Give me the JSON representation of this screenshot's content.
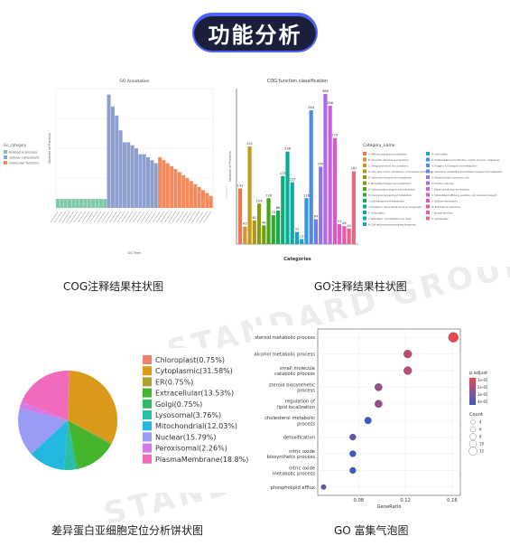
{
  "page_title": "功能分析",
  "watermark_text": "STANDARD GROUP",
  "captions": {
    "cog": "COG注释结果柱状图",
    "go": "GO注释结果柱状图",
    "pie": "差异蛋白亚细胞定位分析饼状图",
    "bubble": "GO 富集气泡图"
  },
  "chart_data": [
    {
      "id": "go_annotation",
      "type": "bar",
      "title": "GO Annotation",
      "xlabel": "GO Term",
      "ylabel": "Number of Proteins",
      "legend_title": "Go_category",
      "legend": [
        "biological process",
        "cellular component",
        "molecular function"
      ],
      "colors": [
        "#7fc8a9",
        "#8e9fcf",
        "#f58a5c"
      ],
      "values": [
        [
          3,
          3,
          3,
          3,
          3,
          3,
          3,
          3,
          3,
          3,
          3,
          3,
          3
        ],
        [
          38,
          34,
          31,
          26,
          22,
          22,
          21,
          20,
          18,
          18,
          17,
          16,
          15
        ],
        [
          17,
          16,
          15,
          14,
          13,
          12,
          11,
          10,
          9,
          8,
          7,
          6,
          5,
          4
        ]
      ],
      "ylim": [
        0,
        40
      ]
    },
    {
      "id": "cog_classification",
      "type": "bar",
      "title": "COG function classification",
      "xlabel": "Categories",
      "ylabel": "Number of Proteins",
      "legend_title": "Category_name",
      "values": [
        143,
        45,
        251,
        61,
        104,
        48,
        118,
        74,
        86,
        175,
        238,
        159,
        31,
        13,
        118,
        344,
        64,
        199,
        386,
        356,
        273,
        51,
        46,
        40,
        187
      ],
      "colors": [
        "#e8784f",
        "#d6923a",
        "#c49a18",
        "#ae9a14",
        "#8a9a10",
        "#6ba30e",
        "#48a41c",
        "#2ea82d",
        "#16ad4c",
        "#0bae73",
        "#07ae93",
        "#08aaaa",
        "#12a6bf",
        "#21a0d2",
        "#2f97e3",
        "#4e89ed",
        "#6f7df0",
        "#8f73ee",
        "#ab6ae9",
        "#c561e0",
        "#d659cf",
        "#e257bb",
        "#e85aa5",
        "#ea5f90",
        "#e9677d"
      ],
      "legend": [
        "A: RNA processing and modification",
        "B: Chromatin structure and dynamics",
        "C: Energy production and conversion",
        "D: Cell cycle control, cell division, chromosome partitioning",
        "E: Amino acid transport and metabolism",
        "F: Nucleotide transport and metabolism",
        "G: Carbohydrate transport and metabolism",
        "H: Coenzyme transport and metabolism",
        "I: Lipid transport and metabolism",
        "J: Translation, ribosomal structure and biogenesis",
        "K: Transcription",
        "L: Replication, recombination and repair",
        "M: Cell wall/membrane/envelope biogenesis",
        "N: Cell motility",
        "O: Posttranslational modification, protein turnover, chaperones",
        "P: Inorganic ion transport and metabolism",
        "Q: Secondary metabolites biosynthesis, transport and catabolism",
        "R: General function prediction only",
        "S: Function unknown",
        "T: Signal transduction mechanisms",
        "U: Intracellular trafficking, secretion, and vesicular transport",
        "V: Defense mechanisms",
        "W: Extracellular structures",
        "Y: Nuclear structure",
        "Z: Cytoskeleton"
      ],
      "ylim": [
        0,
        400
      ]
    },
    {
      "id": "subcellular_pie",
      "type": "pie",
      "labels": [
        "Chloroplast(0.75%)",
        "Cytoplasmic(31.58%)",
        "ER(0.75%)",
        "Extracellular(13.53%)",
        "Golgi(0.75%)",
        "Lysosomal(3.76%)",
        "Mitochondrial(12.03%)",
        "Nuclear(15.79%)",
        "Peroxisomal(2.26%)",
        "PlasmaMembrane(18.8%)"
      ],
      "values": [
        0.75,
        31.58,
        0.75,
        13.53,
        0.75,
        3.76,
        12.03,
        15.79,
        2.26,
        18.8
      ],
      "colors": [
        "#f08070",
        "#d99a1a",
        "#b0a030",
        "#44b52c",
        "#32b860",
        "#2bbfa8",
        "#22b8e0",
        "#9a9bf5",
        "#d678e6",
        "#f06bbd"
      ]
    },
    {
      "id": "go_bubble",
      "type": "scatter",
      "xlabel": "GeneRatio",
      "categories": [
        "steroid metabolic process",
        "alcohol metabolic process",
        "small molecule catabolic process",
        "steroid biosynthetic process",
        "regulation of lipid localization",
        "cholesterol metabolic process",
        "detoxification",
        "nitric oxide biosynthetic process",
        "nitric oxide metabolic process",
        "phospholipid efflux"
      ],
      "x": [
        0.161,
        0.122,
        0.122,
        0.097,
        0.097,
        0.088,
        0.075,
        0.075,
        0.075,
        0.05
      ],
      "count": [
        12,
        9,
        9,
        8,
        8,
        7,
        6,
        6,
        6,
        4
      ],
      "p_adjust": [
        1e-05,
        2e-05,
        2e-05,
        3e-05,
        3e-05,
        5e-05,
        4e-05,
        5e-05,
        5e-05,
        4e-05
      ],
      "xticks": [
        "0.08",
        "0.12",
        "0.16"
      ],
      "xlim": [
        0.045,
        0.167
      ],
      "color_legend_title": "p.adjust",
      "color_legend_ticks": [
        "1e-05",
        "2e-05",
        "3e-05",
        "4e-05"
      ],
      "color_scale": [
        "#e8474f",
        "#3b5bc4"
      ],
      "size_legend_title": "Count",
      "size_legend_values": [
        4,
        6,
        8,
        10,
        12
      ]
    }
  ]
}
